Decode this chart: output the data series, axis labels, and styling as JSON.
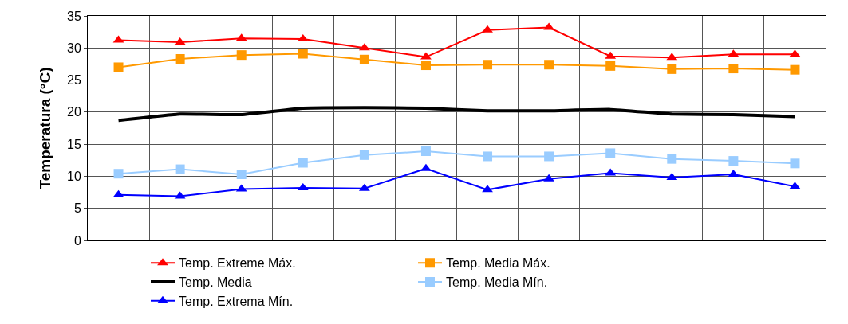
{
  "chart_data": {
    "type": "line",
    "ylabel": "Temperatura (°C)",
    "categories": [
      null,
      null,
      null,
      null,
      null,
      null,
      null,
      null,
      null,
      null,
      null,
      null
    ],
    "ylim": [
      0,
      35
    ],
    "yticks": [
      0,
      5,
      10,
      15,
      20,
      25,
      30,
      35
    ],
    "grid": true,
    "legend": "bottom",
    "tick_labels": "y",
    "series": [
      {
        "name": "Temp. Extreme Máx.",
        "color": "#ff0000",
        "marker": "triangle",
        "values": [
          31.2,
          30.9,
          31.5,
          31.4,
          30.0,
          28.6,
          32.8,
          33.2,
          28.7,
          28.5,
          29.0,
          29.0
        ]
      },
      {
        "name": "Temp. Media Máx.",
        "color": "#ff9900",
        "marker": "square",
        "values": [
          27.0,
          28.3,
          28.9,
          29.1,
          28.2,
          27.3,
          27.4,
          27.4,
          27.2,
          26.7,
          26.8,
          26.6
        ]
      },
      {
        "name": "Temp. Media",
        "color": "#000000",
        "marker": "none",
        "values": [
          18.7,
          19.7,
          19.6,
          20.6,
          20.7,
          20.6,
          20.2,
          20.2,
          20.4,
          19.7,
          19.6,
          19.3
        ]
      },
      {
        "name": "Temp. Media Mín.",
        "color": "#99ccff",
        "marker": "square",
        "values": [
          10.4,
          11.1,
          10.3,
          12.1,
          13.3,
          13.9,
          13.1,
          13.1,
          13.6,
          12.7,
          12.4,
          12.0
        ]
      },
      {
        "name": "Temp. Extrema Mín.",
        "color": "#0000ff",
        "marker": "triangle",
        "values": [
          7.1,
          6.9,
          8.0,
          8.2,
          8.1,
          11.2,
          7.9,
          9.6,
          10.5,
          9.8,
          10.3,
          8.4
        ]
      }
    ]
  }
}
